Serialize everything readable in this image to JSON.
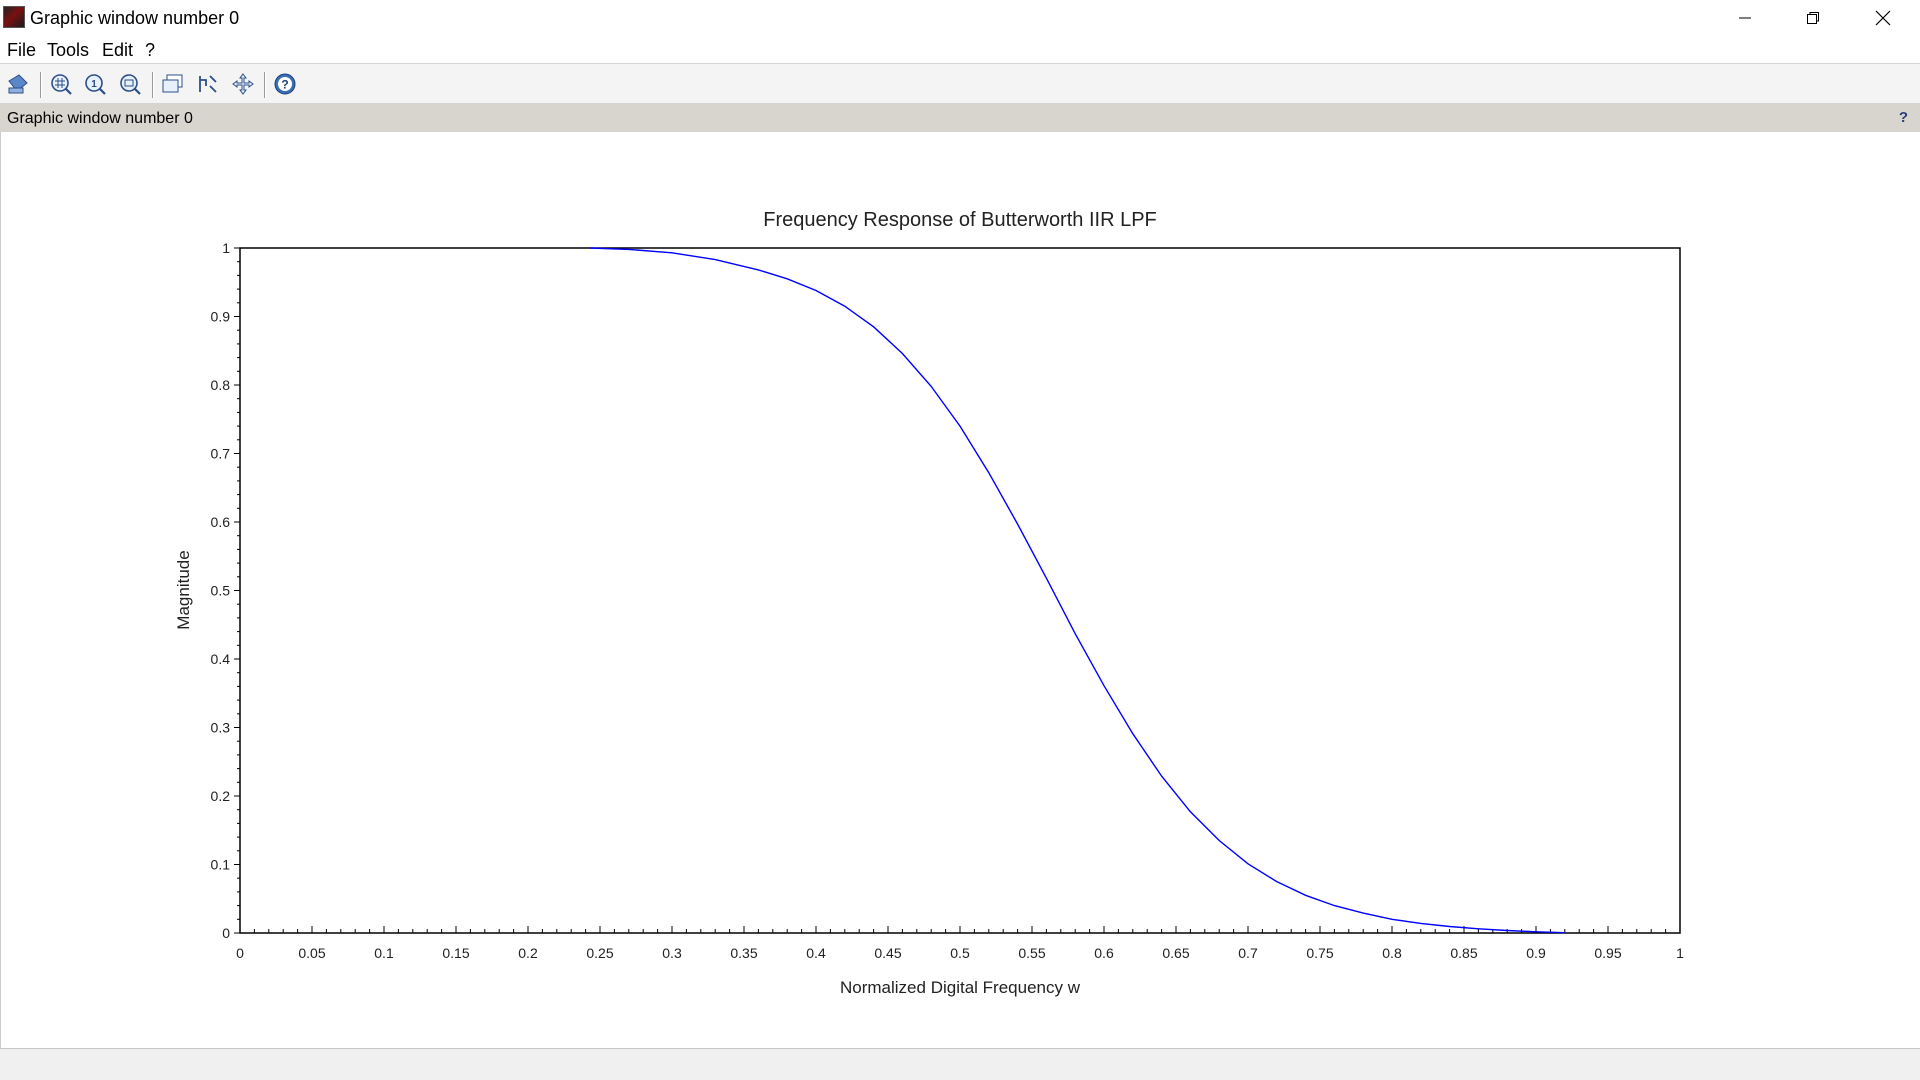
{
  "window": {
    "title": "Graphic window number 0"
  },
  "menu": {
    "items": [
      "File",
      "Tools",
      "Edit",
      "?"
    ]
  },
  "toolbar": {
    "icons": [
      "datatip-icon",
      "zoom-grid-icon",
      "zoom-in-icon",
      "zoom-out-icon",
      "new-window-icon",
      "rotate-icon",
      "pan-icon",
      "help-icon"
    ]
  },
  "infobar": {
    "text": "Graphic window number 0",
    "help": "?"
  },
  "colors": {
    "curve": "#0000ff",
    "infobar_bg": "#d8d4ce"
  },
  "chart_data": {
    "type": "line",
    "title": "Frequency Response of Butterworth IIR LPF",
    "xlabel": "Normalized Digital Frequency w",
    "ylabel": "Magnitude",
    "xlim": [
      0,
      1
    ],
    "ylim": [
      0,
      1
    ],
    "x_ticks": [
      "0",
      "0.05",
      "0.1",
      "0.15",
      "0.2",
      "0.25",
      "0.3",
      "0.35",
      "0.4",
      "0.45",
      "0.5",
      "0.55",
      "0.6",
      "0.65",
      "0.7",
      "0.75",
      "0.8",
      "0.85",
      "0.9",
      "0.95",
      "1"
    ],
    "y_ticks": [
      "0",
      "0.1",
      "0.2",
      "0.3",
      "0.4",
      "0.5",
      "0.6",
      "0.7",
      "0.8",
      "0.9",
      "1"
    ],
    "grid": false,
    "series": [
      {
        "color": "#0000ff",
        "x": [
          0.243,
          0.27,
          0.3,
          0.33,
          0.36,
          0.38,
          0.4,
          0.42,
          0.44,
          0.46,
          0.48,
          0.5,
          0.52,
          0.54,
          0.56,
          0.58,
          0.6,
          0.62,
          0.64,
          0.66,
          0.68,
          0.7,
          0.72,
          0.74,
          0.76,
          0.78,
          0.8,
          0.82,
          0.84,
          0.86,
          0.88,
          0.9,
          0.92
        ],
        "y": [
          1.0,
          0.998,
          0.993,
          0.983,
          0.968,
          0.955,
          0.938,
          0.915,
          0.885,
          0.846,
          0.798,
          0.74,
          0.672,
          0.597,
          0.518,
          0.437,
          0.361,
          0.291,
          0.229,
          0.177,
          0.135,
          0.101,
          0.075,
          0.055,
          0.04,
          0.029,
          0.02,
          0.014,
          0.0095,
          0.0062,
          0.0037,
          0.0018,
          0.0005
        ]
      }
    ]
  }
}
